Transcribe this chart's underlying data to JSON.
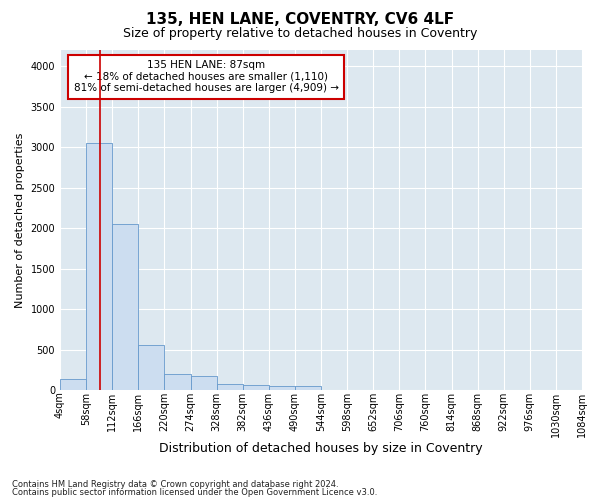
{
  "title1": "135, HEN LANE, COVENTRY, CV6 4LF",
  "title2": "Size of property relative to detached houses in Coventry",
  "xlabel": "Distribution of detached houses by size in Coventry",
  "ylabel": "Number of detached properties",
  "footnote1": "Contains HM Land Registry data © Crown copyright and database right 2024.",
  "footnote2": "Contains public sector information licensed under the Open Government Licence v3.0.",
  "bin_labels": [
    "4sqm",
    "58sqm",
    "112sqm",
    "166sqm",
    "220sqm",
    "274sqm",
    "328sqm",
    "382sqm",
    "436sqm",
    "490sqm",
    "544sqm",
    "598sqm",
    "652sqm",
    "706sqm",
    "760sqm",
    "814sqm",
    "868sqm",
    "922sqm",
    "976sqm",
    "1030sqm",
    "1084sqm"
  ],
  "bar_values": [
    130,
    3050,
    2050,
    550,
    200,
    175,
    75,
    60,
    50,
    50,
    0,
    0,
    0,
    0,
    0,
    0,
    0,
    0,
    0,
    0
  ],
  "bar_color": "#ccddf0",
  "bar_edge_color": "#6699cc",
  "red_line_color": "#cc0000",
  "annotation_text": "135 HEN LANE: 87sqm\n← 18% of detached houses are smaller (1,110)\n81% of semi-detached houses are larger (4,909) →",
  "annotation_box_color": "#ffffff",
  "annotation_box_edge": "#cc0000",
  "ylim": [
    0,
    4200
  ],
  "yticks": [
    0,
    500,
    1000,
    1500,
    2000,
    2500,
    3000,
    3500,
    4000
  ],
  "background_color": "#dde8f0",
  "grid_color": "#ffffff",
  "fig_background": "#ffffff",
  "title1_fontsize": 11,
  "title2_fontsize": 9,
  "xlabel_fontsize": 9,
  "ylabel_fontsize": 8,
  "tick_fontsize": 7,
  "annot_fontsize": 7.5
}
